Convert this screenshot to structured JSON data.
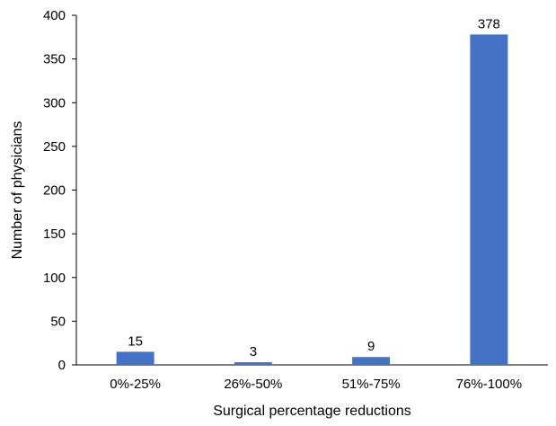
{
  "chart_data": {
    "type": "bar",
    "categories": [
      "0%-25%",
      "26%-50%",
      "51%-75%",
      "76%-100%"
    ],
    "values": [
      15,
      3,
      9,
      378
    ],
    "data_labels": [
      "15",
      "3",
      "9",
      "378"
    ],
    "xlabel": "Surgical percentage reductions",
    "ylabel": "Number of physicians",
    "ylim": [
      0,
      400
    ],
    "yticks": [
      0,
      50,
      100,
      150,
      200,
      250,
      300,
      350,
      400
    ],
    "grid": false,
    "legend": "none",
    "bar_color": "#4472C4",
    "axis_color": "#000000"
  }
}
